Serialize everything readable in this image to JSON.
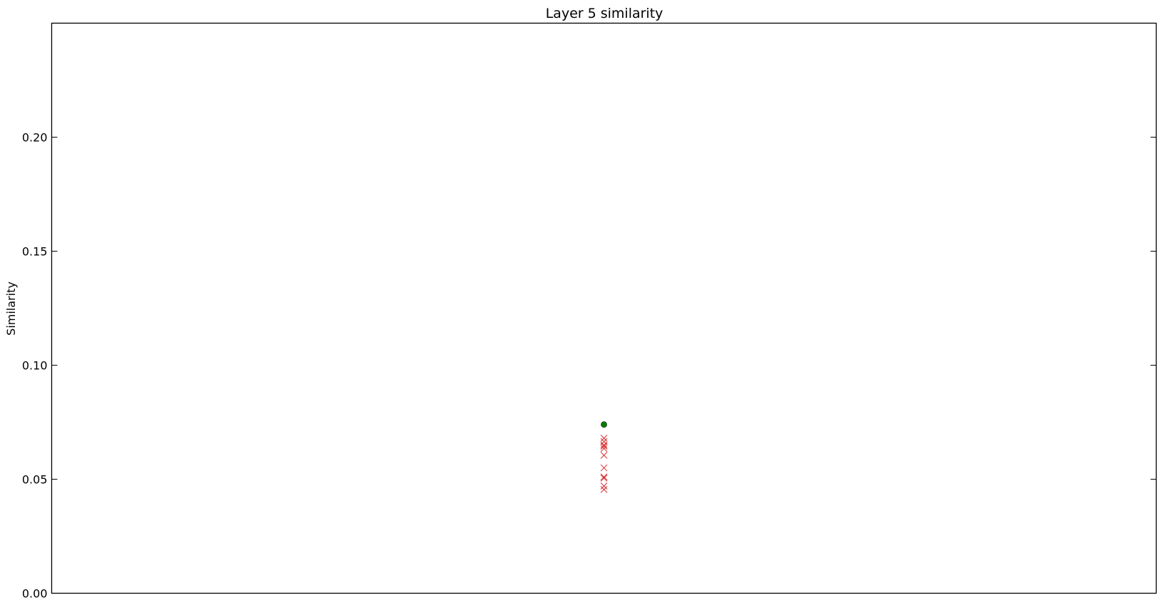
{
  "chart_data": {
    "type": "scatter",
    "title": "Layer 5 similarity",
    "xlabel": "",
    "ylabel": "Similarity",
    "ylim": [
      0.0,
      0.25
    ],
    "xlim": [
      -1,
      1
    ],
    "yticks": [
      "0.00",
      "0.05",
      "0.10",
      "0.15",
      "0.20"
    ],
    "grid": false,
    "series": [
      {
        "marker": "circle",
        "color": "#007f00",
        "points": [
          {
            "x": 0,
            "y": 0.074
          }
        ]
      },
      {
        "marker": "x",
        "color": "#d62728",
        "points": [
          {
            "x": 0,
            "y": 0.068
          },
          {
            "x": 0,
            "y": 0.0665
          },
          {
            "x": 0,
            "y": 0.065
          },
          {
            "x": 0,
            "y": 0.0645
          },
          {
            "x": 0,
            "y": 0.0635
          },
          {
            "x": 0,
            "y": 0.0605
          },
          {
            "x": 0,
            "y": 0.055
          },
          {
            "x": 0,
            "y": 0.051
          },
          {
            "x": 0,
            "y": 0.0505
          },
          {
            "x": 0,
            "y": 0.047
          },
          {
            "x": 0,
            "y": 0.0455
          }
        ]
      }
    ]
  }
}
